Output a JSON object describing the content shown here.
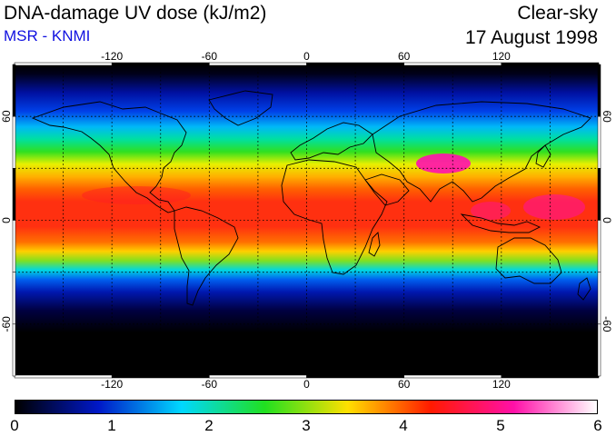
{
  "header": {
    "title": "DNA-damage UV dose (kJ/m2)",
    "source": "MSR - KNMI",
    "condition": "Clear-sky",
    "date": "17 August 1998"
  },
  "map": {
    "projection": "equirectangular",
    "lon_range": [
      -180,
      180
    ],
    "lat_range": [
      -90,
      90
    ],
    "lon_ticks": [
      "-120",
      "-60",
      "0",
      "60",
      "120"
    ],
    "lat_ticks": [
      "60",
      "0",
      "-60"
    ],
    "gridlines": "dotted",
    "coastlines": true
  },
  "colorbar": {
    "min": 0,
    "max": 6,
    "labels": [
      "0",
      "1",
      "2",
      "3",
      "4",
      "5",
      "6"
    ],
    "colors": [
      "#000000",
      "#0018c8",
      "#00d8ff",
      "#20e020",
      "#ffe000",
      "#ff1a00",
      "#ff10a8",
      "#ffffff"
    ]
  }
}
